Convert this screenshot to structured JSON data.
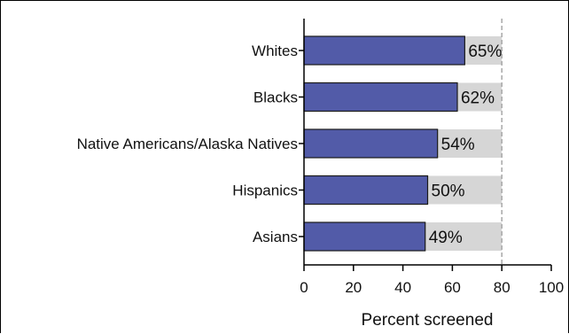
{
  "chart_data": {
    "type": "bar",
    "orientation": "horizontal",
    "categories": [
      "Whites",
      "Blacks",
      "Native Americans/Alaska Natives",
      "Hispanics",
      "Asians"
    ],
    "values": [
      65,
      62,
      54,
      50,
      49
    ],
    "value_labels": [
      "65%",
      "62%",
      "54%",
      "50%",
      "49%"
    ],
    "target": 80,
    "title": "",
    "xlabel": "Percent screened",
    "ylabel": "",
    "xlim": [
      0,
      100
    ],
    "xticks": [
      0,
      20,
      40,
      60,
      80,
      100
    ],
    "grid": false,
    "colors": {
      "bar": "#525ba8",
      "target_background": "#d6d6d6",
      "target_line": "#a8a8a8"
    }
  }
}
